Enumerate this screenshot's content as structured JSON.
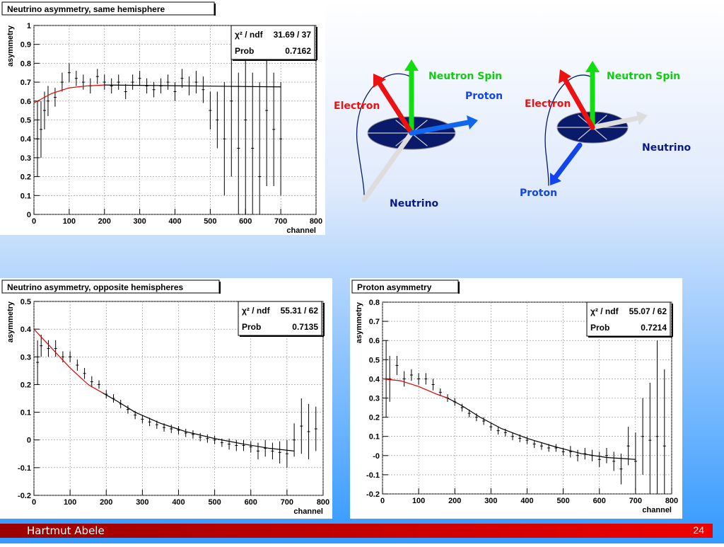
{
  "chart_data": [
    {
      "type": "errorbar",
      "title": "Neutrino asymmetry, same hemisphere",
      "xlabel": "channel",
      "ylabel": "asymmetry",
      "x": [
        10,
        20,
        30,
        40,
        60,
        80,
        100,
        120,
        140,
        160,
        180,
        200,
        220,
        240,
        260,
        280,
        300,
        320,
        340,
        360,
        380,
        400,
        420,
        440,
        460,
        480,
        500,
        520,
        540,
        560,
        580,
        600,
        620,
        640,
        660,
        680,
        700
      ],
      "values": [
        0.4,
        0.45,
        0.55,
        0.6,
        0.62,
        0.7,
        0.75,
        0.72,
        0.7,
        0.68,
        0.73,
        0.7,
        0.68,
        0.7,
        0.65,
        0.7,
        0.72,
        0.68,
        0.66,
        0.68,
        0.7,
        0.65,
        0.72,
        0.68,
        0.7,
        0.66,
        0.55,
        0.5,
        0.4,
        0.6,
        0.35,
        0.5,
        0.35,
        0.2,
        0.55,
        0.45,
        0.4
      ],
      "errors": [
        0.2,
        0.15,
        0.1,
        0.08,
        0.05,
        0.05,
        0.05,
        0.04,
        0.04,
        0.04,
        0.04,
        0.04,
        0.04,
        0.04,
        0.04,
        0.04,
        0.04,
        0.04,
        0.04,
        0.04,
        0.04,
        0.05,
        0.05,
        0.05,
        0.06,
        0.07,
        0.1,
        0.15,
        0.3,
        0.4,
        0.4,
        0.5,
        0.4,
        0.5,
        0.4,
        0.3,
        0.3
      ],
      "fit": {
        "x": [
          0,
          50,
          100,
          150,
          200
        ],
        "values": [
          0.59,
          0.64,
          0.67,
          0.68,
          0.685
        ],
        "color": "#e00000"
      },
      "fit_extension": {
        "x": [
          200,
          450,
          700
        ],
        "values": [
          0.685,
          0.68,
          0.675
        ],
        "color": "#000000"
      },
      "stats": {
        "label_1": "χ² / ndf",
        "value_1": "31.69 / 37",
        "label_2": "Prob",
        "value_2": "0.7162"
      },
      "xlim": [
        0,
        800
      ],
      "xticks": [
        0,
        100,
        200,
        300,
        400,
        500,
        600,
        700,
        800
      ],
      "ylim": [
        0,
        1
      ],
      "yticks": [
        0,
        0.1,
        0.2,
        0.3,
        0.4,
        0.5,
        0.6,
        0.7,
        0.8,
        0.9,
        1
      ],
      "grid": true
    },
    {
      "type": "errorbar",
      "title": "Neutrino asymmetry, opposite hemispheres",
      "xlabel": "channel",
      "ylabel": "asymmetry",
      "x": [
        10,
        20,
        40,
        60,
        80,
        100,
        120,
        140,
        160,
        180,
        200,
        220,
        240,
        260,
        280,
        300,
        320,
        340,
        360,
        380,
        400,
        420,
        440,
        460,
        480,
        500,
        520,
        540,
        560,
        580,
        600,
        620,
        640,
        660,
        680,
        700,
        720,
        740,
        760,
        780
      ],
      "values": [
        0.28,
        0.34,
        0.33,
        0.33,
        0.3,
        0.3,
        0.27,
        0.24,
        0.21,
        0.2,
        0.165,
        0.15,
        0.13,
        0.11,
        0.09,
        0.075,
        0.065,
        0.055,
        0.045,
        0.04,
        0.035,
        0.025,
        0.02,
        0.01,
        0.005,
        0,
        -0.01,
        -0.015,
        -0.02,
        -0.02,
        -0.025,
        -0.04,
        -0.03,
        -0.04,
        -0.045,
        -0.05,
        0,
        0.05,
        0.03,
        0.04
      ],
      "errors": [
        0.08,
        0.04,
        0.03,
        0.03,
        0.02,
        0.02,
        0.02,
        0.02,
        0.02,
        0.015,
        0.015,
        0.015,
        0.015,
        0.015,
        0.015,
        0.015,
        0.015,
        0.015,
        0.015,
        0.015,
        0.015,
        0.015,
        0.015,
        0.015,
        0.015,
        0.015,
        0.015,
        0.02,
        0.02,
        0.02,
        0.02,
        0.03,
        0.03,
        0.03,
        0.04,
        0.05,
        0.06,
        0.1,
        0.1,
        0.08
      ],
      "fit": {
        "x": [
          0,
          50,
          100,
          150,
          190
        ],
        "values": [
          0.4,
          0.33,
          0.26,
          0.2,
          0.17
        ],
        "color": "#e00000"
      },
      "fit_extension": {
        "x": [
          190,
          230,
          280,
          350,
          420,
          500,
          580,
          650,
          720
        ],
        "values": [
          0.17,
          0.14,
          0.1,
          0.06,
          0.03,
          0.005,
          -0.015,
          -0.03,
          -0.04
        ],
        "color": "#000000"
      },
      "stats": {
        "label_1": "χ² / ndf",
        "value_1": "55.31 / 62",
        "label_2": "Prob",
        "value_2": "0.7135"
      },
      "xlim": [
        0,
        800
      ],
      "xticks": [
        0,
        100,
        200,
        300,
        400,
        500,
        600,
        700,
        800
      ],
      "ylim": [
        -0.2,
        0.5
      ],
      "yticks": [
        -0.2,
        -0.1,
        0,
        0.1,
        0.2,
        0.3,
        0.4,
        0.5
      ],
      "grid": true
    },
    {
      "type": "errorbar",
      "title": "Proton asymmetry",
      "xlabel": "channel",
      "ylabel": "asymmetry",
      "x": [
        10,
        20,
        40,
        60,
        80,
        100,
        120,
        140,
        160,
        180,
        200,
        220,
        240,
        260,
        280,
        300,
        320,
        340,
        360,
        380,
        400,
        420,
        440,
        460,
        480,
        500,
        520,
        540,
        560,
        580,
        600,
        620,
        640,
        660,
        680,
        700,
        720,
        740,
        760,
        780
      ],
      "values": [
        0.4,
        0.4,
        0.47,
        0.4,
        0.42,
        0.4,
        0.4,
        0.37,
        0.33,
        0.3,
        0.28,
        0.25,
        0.22,
        0.2,
        0.18,
        0.15,
        0.13,
        0.12,
        0.1,
        0.09,
        0.08,
        0.06,
        0.05,
        0.04,
        0.04,
        0.02,
        0.02,
        0,
        0.01,
        0,
        -0.02,
        0,
        -0.03,
        -0.07,
        0.05,
        -0.03,
        0.1,
        0.08,
        0.1,
        0.05
      ],
      "errors": [
        0.2,
        0.12,
        0.05,
        0.04,
        0.03,
        0.03,
        0.03,
        0.03,
        0.02,
        0.02,
        0.02,
        0.02,
        0.02,
        0.02,
        0.02,
        0.02,
        0.02,
        0.02,
        0.02,
        0.02,
        0.02,
        0.02,
        0.02,
        0.02,
        0.02,
        0.02,
        0.03,
        0.03,
        0.03,
        0.03,
        0.04,
        0.04,
        0.05,
        0.08,
        0.1,
        0.15,
        0.2,
        0.3,
        0.5,
        0.4
      ],
      "fit": {
        "x": [
          0,
          50,
          100,
          150,
          180
        ],
        "values": [
          0.4,
          0.39,
          0.36,
          0.32,
          0.3
        ],
        "color": "#e00000"
      },
      "fit_extension": {
        "x": [
          180,
          220,
          270,
          330,
          400,
          470,
          550,
          620,
          700
        ],
        "values": [
          0.3,
          0.26,
          0.2,
          0.14,
          0.09,
          0.05,
          0.01,
          -0.01,
          -0.02
        ],
        "color": "#000000"
      },
      "stats": {
        "label_1": "χ² / ndf",
        "value_1": "55.07 / 62",
        "label_2": "Prob",
        "value_2": "0.7214"
      },
      "xlim": [
        0,
        800
      ],
      "xticks": [
        0,
        100,
        200,
        300,
        400,
        500,
        600,
        700,
        800
      ],
      "ylim": [
        -0.2,
        0.8
      ],
      "yticks": [
        -0.2,
        -0.1,
        {
          "value": 0,
          "label": "-0"
        },
        0.1,
        0.2,
        0.3,
        0.4,
        0.5,
        0.6,
        0.7,
        0.8
      ],
      "grid": true
    }
  ],
  "diagrams": [
    {
      "labels": [
        "Neutron Spin",
        "Proton",
        "Electron",
        "Neutrino"
      ]
    },
    {
      "labels": [
        "Neutron Spin",
        "Electron",
        "Neutrino",
        "Proton"
      ]
    }
  ],
  "footer": {
    "author": "Hartmut Abele",
    "page": "24"
  }
}
